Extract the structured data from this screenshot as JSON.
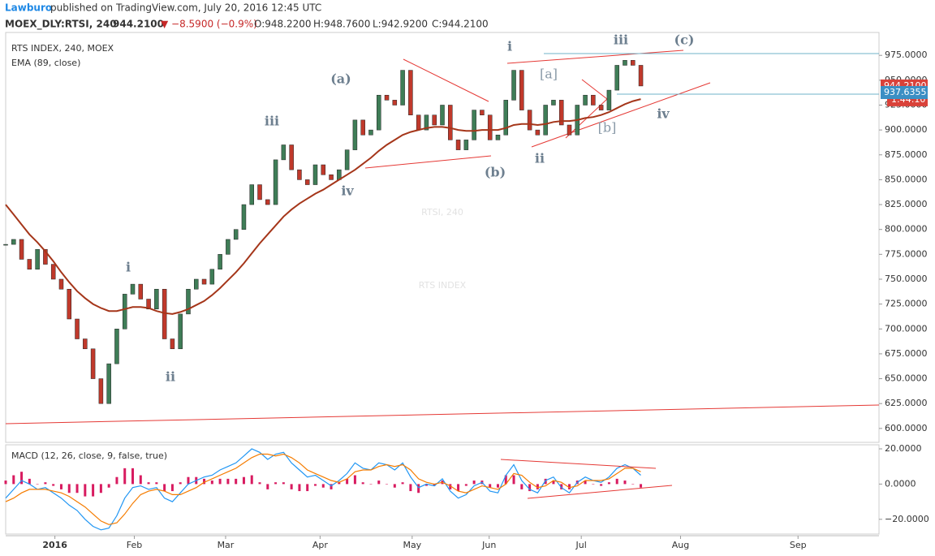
{
  "header": {
    "author": "Lawburo",
    "published": "published on TradingView.com, July 20, 2016 12:45 UTC",
    "symbol": "MOEX_DLY:RTSI, 240",
    "price": "944.2100",
    "change": "▼ −8.5900 (−0.9%)",
    "ohlc": [
      "O:948.2200",
      "H:948.7600",
      "L:942.9200",
      "C:944.2100"
    ]
  },
  "chart_data": [
    {
      "type": "candlestick",
      "watermark": "RTSI, 240",
      "watermark_sub": "RTS INDEX",
      "xlim": [
        0,
        110
      ],
      "xticks": [
        {
          "value": 6.2,
          "label": "2016"
        },
        {
          "value": 16.2,
          "label": "Feb"
        },
        {
          "value": 27.7,
          "label": "Mar"
        },
        {
          "value": 39.6,
          "label": "Apr"
        },
        {
          "value": 51.2,
          "label": "May"
        },
        {
          "value": 60.9,
          "label": "Jun"
        },
        {
          "value": 72.5,
          "label": "Jul"
        },
        {
          "value": 85.0,
          "label": "Aug"
        },
        {
          "value": 99.8,
          "label": "Sep"
        }
      ],
      "ylim": [
        586,
        998
      ],
      "yticks": [
        {
          "value": 600,
          "label": "600.0000"
        },
        {
          "value": 625,
          "label": "625.0000"
        },
        {
          "value": 650,
          "label": "650.0000"
        },
        {
          "value": 675,
          "label": "675.0000"
        },
        {
          "value": 700,
          "label": "700.0000"
        },
        {
          "value": 725,
          "label": "725.0000"
        },
        {
          "value": 750,
          "label": "750.0000"
        },
        {
          "value": 775,
          "label": "775.0000"
        },
        {
          "value": 800,
          "label": "800.0000"
        },
        {
          "value": 825,
          "label": "825.0000"
        },
        {
          "value": 850,
          "label": "850.0000"
        },
        {
          "value": 875,
          "label": "875.0000"
        },
        {
          "value": 900,
          "label": "900.0000"
        },
        {
          "value": 925,
          "label": "925.0000"
        },
        {
          "value": 950,
          "label": "950.0000"
        },
        {
          "value": 975,
          "label": "975.0000"
        }
      ],
      "series": [
        {
          "name": "RTS INDEX, 240, MOEX",
          "up_color": "#3f7d57",
          "down_color": "#c0392b",
          "values": [
            785,
            790,
            770,
            760,
            780,
            765,
            750,
            740,
            710,
            690,
            680,
            650,
            625,
            665,
            700,
            735,
            745,
            730,
            720,
            740,
            690,
            680,
            715,
            740,
            750,
            745,
            760,
            775,
            790,
            800,
            825,
            845,
            830,
            825,
            870,
            885,
            860,
            850,
            845,
            865,
            855,
            850,
            860,
            880,
            910,
            895,
            900,
            935,
            930,
            925,
            960,
            915,
            900,
            915,
            905,
            925,
            890,
            880,
            890,
            920,
            915,
            890,
            895,
            930,
            960,
            920,
            900,
            895,
            925,
            930,
            905,
            895,
            925,
            935,
            925,
            920,
            940,
            965,
            970,
            965,
            944.21
          ]
        },
        {
          "name": "EMA (89, close)",
          "color": "#a5361a",
          "values": [
            825,
            815,
            805,
            795,
            787,
            778,
            768,
            757,
            747,
            738,
            731,
            725,
            721,
            718,
            718,
            720,
            722,
            722,
            721,
            718,
            716,
            715,
            717,
            720,
            724,
            728,
            734,
            741,
            749,
            757,
            766,
            776,
            786,
            795,
            804,
            813,
            820,
            826,
            831,
            836,
            840,
            845,
            850,
            855,
            860,
            866,
            872,
            879,
            885,
            890,
            895,
            898,
            900,
            902,
            903,
            903,
            902,
            900,
            899,
            899,
            900,
            900,
            900,
            902,
            905,
            906,
            906,
            905,
            906,
            908,
            909,
            909,
            910,
            912,
            913,
            915,
            918,
            922,
            926,
            929,
            931
          ]
        }
      ],
      "last_price": {
        "value": 944.21,
        "label": "944.2100",
        "color": "#d9423a"
      },
      "countdown": "1:44:10",
      "ema_last": {
        "value": 937.6355,
        "label": "937.6355",
        "color": "#3b8fc4"
      },
      "annotations": [
        "(a)",
        "iii",
        "iv",
        "i",
        "ii",
        "(b)",
        "ii",
        "i",
        "[a]",
        "iii",
        "(c)",
        "[b]",
        "iv"
      ]
    },
    {
      "type": "line",
      "title": "MACD (12, 26, close, 9, false, true)",
      "xlim": [
        0,
        110
      ],
      "ylim": [
        -28.4,
        22.3
      ],
      "yticks": [
        {
          "value": 20,
          "label": "20.0000"
        },
        {
          "value": 0,
          "label": "0.0000"
        },
        {
          "value": -20,
          "label": "−20.0000"
        }
      ],
      "histogram": {
        "color": "#d81b60",
        "values": [
          2,
          5,
          7,
          3,
          0,
          1,
          -1,
          -3,
          -5,
          -5,
          -7,
          -7,
          -5,
          -2,
          4,
          9,
          9,
          5,
          1,
          1,
          -4,
          -4,
          1,
          4,
          4,
          3,
          2,
          3,
          3,
          3,
          4,
          5,
          1,
          -3,
          1,
          1,
          -3,
          -4,
          -4,
          -1,
          -2,
          -3,
          1,
          3,
          5,
          1,
          0,
          2,
          0,
          -2,
          1,
          -4,
          -5,
          -1,
          -1,
          2,
          -3,
          -4,
          -1,
          2,
          2,
          -2,
          -2,
          5,
          5,
          -3,
          -4,
          -3,
          3,
          2,
          -3,
          -3,
          2,
          2,
          0,
          -1,
          1,
          3,
          2,
          0,
          -2
        ]
      },
      "series": [
        {
          "color": "#2196f3",
          "values": [
            -8,
            -3,
            2,
            0,
            -3,
            -2,
            -5,
            -8,
            -12,
            -15,
            -20,
            -24,
            -26,
            -25,
            -18,
            -8,
            -2,
            -1,
            -3,
            -2,
            -8,
            -10,
            -5,
            0,
            2,
            4,
            5,
            8,
            10,
            12,
            16,
            20,
            18,
            14,
            17,
            18,
            12,
            8,
            4,
            5,
            2,
            -1,
            2,
            6,
            12,
            9,
            8,
            12,
            11,
            8,
            12,
            4,
            -2,
            0,
            -1,
            3,
            -4,
            -8,
            -6,
            -1,
            1,
            -4,
            -5,
            5,
            11,
            2,
            -3,
            -5,
            2,
            4,
            -2,
            -5,
            1,
            4,
            2,
            1,
            4,
            9,
            11,
            9,
            5
          ]
        },
        {
          "color": "#f57c00",
          "values": [
            -10,
            -8,
            -5,
            -3,
            -3,
            -3,
            -4,
            -5,
            -7,
            -10,
            -13,
            -17,
            -21,
            -23,
            -22,
            -17,
            -11,
            -6,
            -4,
            -3,
            -4,
            -6,
            -6,
            -4,
            -2,
            1,
            3,
            5,
            7,
            9,
            12,
            15,
            17,
            17,
            16,
            17,
            15,
            12,
            8,
            6,
            4,
            2,
            1,
            3,
            7,
            8,
            8,
            10,
            11,
            10,
            11,
            8,
            3,
            1,
            0,
            1,
            -1,
            -4,
            -5,
            -3,
            -1,
            -2,
            -3,
            0,
            6,
            5,
            1,
            -2,
            -1,
            2,
            1,
            -2,
            -1,
            2,
            2,
            2,
            3,
            6,
            9,
            9,
            7
          ]
        }
      ]
    }
  ]
}
